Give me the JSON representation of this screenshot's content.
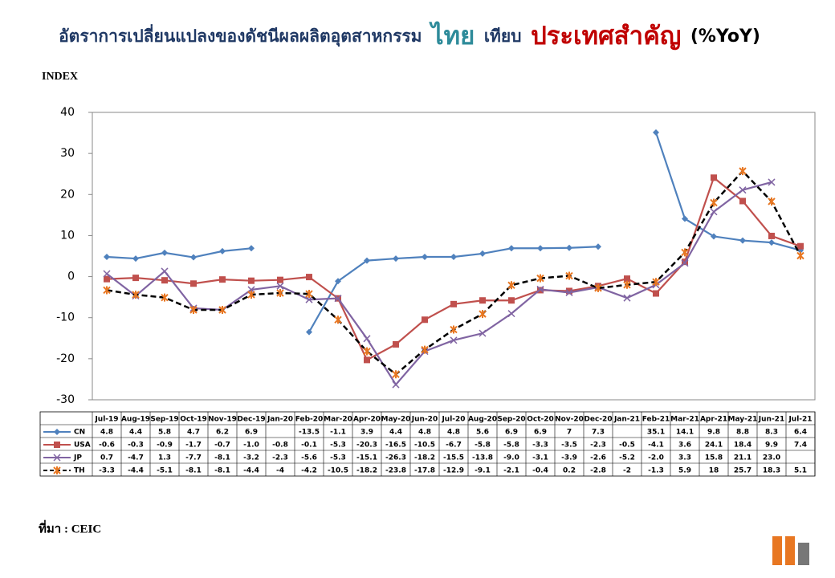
{
  "chart_data": {
    "type": "line",
    "title": [
      "อัตราการเปลี่ยนแปลงของดัชนีผลผลิตอุตสาหกรรม",
      "ไทย",
      "เทียบ",
      "ประเทศสำคัญ",
      "(%YoY)"
    ],
    "ylabel": "INDEX",
    "source": "ที่มา : CEIC",
    "categories": [
      "Jul-19",
      "Aug-19",
      "Sep-19",
      "Oct-19",
      "Nov-19",
      "Dec-19",
      "Jan-20",
      "Feb-20",
      "Mar-20",
      "Apr-20",
      "May-20",
      "Jun-20",
      "Jul-20",
      "Aug-20",
      "Sep-20",
      "Oct-20",
      "Nov-20",
      "Dec-20",
      "Jan-21",
      "Feb-21",
      "Mar-21",
      "Apr-21",
      "May-21",
      "Jun-21",
      "Jul-21"
    ],
    "series": [
      {
        "name": "CN",
        "color": "#4f81bd",
        "values": [
          4.8,
          4.4,
          5.8,
          4.7,
          6.2,
          6.9,
          null,
          -13.5,
          -1.1,
          3.9,
          4.4,
          4.8,
          4.8,
          5.6,
          6.9,
          6.9,
          7,
          7.3,
          null,
          35.1,
          14.1,
          9.8,
          8.8,
          8.3,
          6.4
        ]
      },
      {
        "name": "USA",
        "color": "#c0504d",
        "values": [
          -0.6,
          -0.3,
          -0.9,
          -1.7,
          -0.7,
          -1.0,
          -0.8,
          -0.1,
          -5.3,
          -20.3,
          -16.5,
          -10.5,
          -6.7,
          -5.8,
          -5.8,
          -3.3,
          -3.5,
          -2.3,
          -0.5,
          -4.1,
          3.6,
          24.1,
          18.4,
          9.9,
          7.4
        ],
        "value_labels": [
          "-0.6",
          "-0.3",
          "-0.9",
          "-1.7",
          "-0.7",
          "-1.0",
          "-0.8",
          "-0.1",
          "-5.3",
          "-20.3",
          "-16.5",
          "-10.5",
          "-6.7",
          "-5.8",
          "-5.8",
          "-3.3",
          "-3.5",
          "-2.3",
          "-0.5",
          "-4.1",
          "3.6",
          "24.1",
          "18.4",
          "9.9",
          "7.4"
        ]
      },
      {
        "name": "JP",
        "color": "#8064a2",
        "values": [
          0.7,
          -4.7,
          1.3,
          -7.7,
          -8.1,
          -3.2,
          -2.3,
          -5.6,
          -5.3,
          -15.1,
          -26.3,
          -18.2,
          -15.5,
          -13.8,
          -9.0,
          -3.1,
          -3.9,
          -2.6,
          -5.2,
          -2.0,
          3.3,
          15.8,
          21.1,
          23.0,
          null
        ],
        "value_labels": [
          "0.7",
          "-4.7",
          "1.3",
          "-7.7",
          "-8.1",
          "-3.2",
          "-2.3",
          "-5.6",
          "-5.3",
          "-15.1",
          "-26.3",
          "-18.2",
          "-15.5",
          "-13.8",
          "-9.0",
          "-3.1",
          "-3.9",
          "-2.6",
          "-5.2",
          "-2.0",
          "3.3",
          "15.8",
          "21.1",
          "23.0",
          null
        ]
      },
      {
        "name": "TH",
        "color": "#000000",
        "dashed": true,
        "values": [
          -3.3,
          -4.4,
          -5.1,
          -8.1,
          -8.1,
          -4.4,
          -4,
          -4.2,
          -10.5,
          -18.2,
          -23.8,
          -17.8,
          -12.9,
          -9.1,
          -2.1,
          -0.4,
          0.2,
          -2.8,
          -2,
          -1.3,
          5.9,
          18,
          25.7,
          18.3,
          5.1
        ]
      }
    ],
    "ylim": [
      -30,
      40
    ],
    "yticks": [
      -30,
      -20,
      -10,
      0,
      10,
      20,
      30,
      40
    ]
  }
}
